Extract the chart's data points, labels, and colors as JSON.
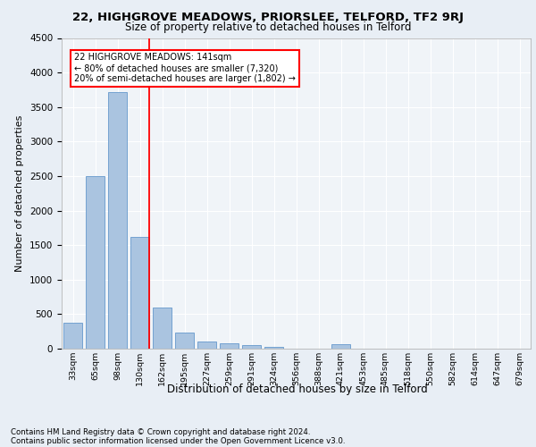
{
  "title1": "22, HIGHGROVE MEADOWS, PRIORSLEE, TELFORD, TF2 9RJ",
  "title2": "Size of property relative to detached houses in Telford",
  "xlabel": "Distribution of detached houses by size in Telford",
  "ylabel": "Number of detached properties",
  "categories": [
    "33sqm",
    "65sqm",
    "98sqm",
    "130sqm",
    "162sqm",
    "195sqm",
    "227sqm",
    "259sqm",
    "291sqm",
    "324sqm",
    "356sqm",
    "388sqm",
    "421sqm",
    "453sqm",
    "485sqm",
    "518sqm",
    "550sqm",
    "582sqm",
    "614sqm",
    "647sqm",
    "679sqm"
  ],
  "values": [
    370,
    2500,
    3720,
    1620,
    590,
    230,
    110,
    75,
    50,
    30,
    0,
    0,
    65,
    0,
    0,
    0,
    0,
    0,
    0,
    0,
    0
  ],
  "bar_color": "#aac4e0",
  "bar_edge_color": "#6699cc",
  "red_line_index": 3,
  "annotation_text1": "22 HIGHGROVE MEADOWS: 141sqm",
  "annotation_text2": "← 80% of detached houses are smaller (7,320)",
  "annotation_text3": "20% of semi-detached houses are larger (1,802) →",
  "ylim": [
    0,
    4500
  ],
  "yticks": [
    0,
    500,
    1000,
    1500,
    2000,
    2500,
    3000,
    3500,
    4000,
    4500
  ],
  "footer1": "Contains HM Land Registry data © Crown copyright and database right 2024.",
  "footer2": "Contains public sector information licensed under the Open Government Licence v3.0.",
  "bg_color": "#e8eef5",
  "plot_bg_color": "#f0f4f8",
  "grid_color": "#ffffff"
}
